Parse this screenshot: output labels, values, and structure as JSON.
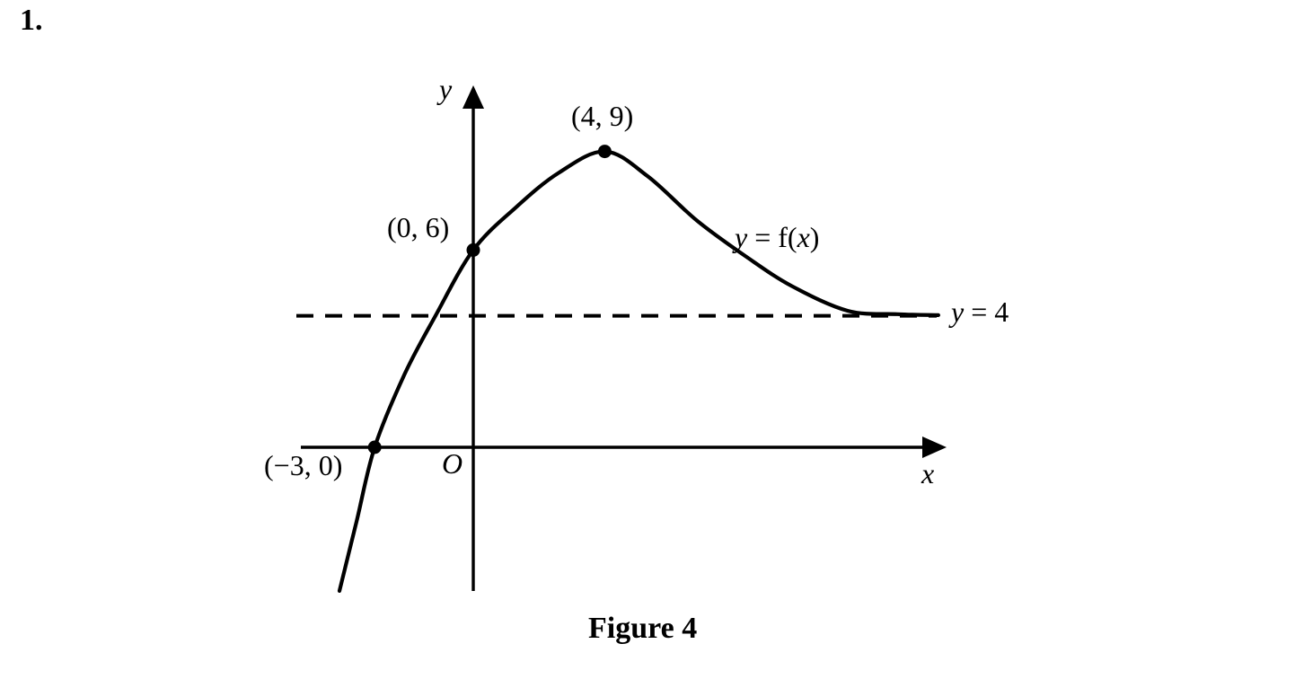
{
  "page": {
    "question_number": "1.",
    "caption": "Figure 4",
    "background_color": "#ffffff",
    "ink_color": "#000000"
  },
  "chart_data": {
    "type": "line",
    "title": "Figure 4",
    "xlabel": "x",
    "ylabel": "y",
    "origin_label": "O",
    "curve_label": "y = f(x)",
    "grid": false,
    "axes_style": "arrowed-school-axes",
    "asymptote": {
      "y": 4,
      "label": "y = 4",
      "style": "dashed",
      "orientation": "horizontal"
    },
    "marked_points": [
      {
        "x": 4,
        "y": 9,
        "label": "(4, 9)",
        "role": "local-maximum"
      },
      {
        "x": 0,
        "y": 6,
        "label": "(0, 6)",
        "role": "y-intercept"
      },
      {
        "x": -3,
        "y": 0,
        "label": "(−3, 0)",
        "role": "x-intercept"
      }
    ],
    "curve_points": [
      [
        -4.07,
        -4.37
      ],
      [
        -3.55,
        -2.25
      ],
      [
        -3,
        0
      ],
      [
        -2.1,
        2.2
      ],
      [
        -1.15,
        4.0
      ],
      [
        0,
        6
      ],
      [
        1.3,
        7.3
      ],
      [
        2.6,
        8.35
      ],
      [
        4,
        9
      ],
      [
        5.3,
        8.25
      ],
      [
        6.8,
        6.9
      ],
      [
        8.3,
        5.8
      ],
      [
        9.7,
        4.9
      ],
      [
        11.4,
        4.15
      ],
      [
        12.9,
        4.05
      ],
      [
        14.15,
        4.02
      ]
    ],
    "behaviour": "curve rises steeply from below the x-axis through (−3, 0) and (0, 6) to a maximum at (4, 9), then decreases towards the horizontal asymptote y = 4 as x increases"
  },
  "labels_display": {
    "curve_var": "y",
    "curve_mid": " = f(",
    "curve_arg": "x",
    "curve_end": ")",
    "asym_var": "y",
    "asym_rest": " = 4"
  }
}
